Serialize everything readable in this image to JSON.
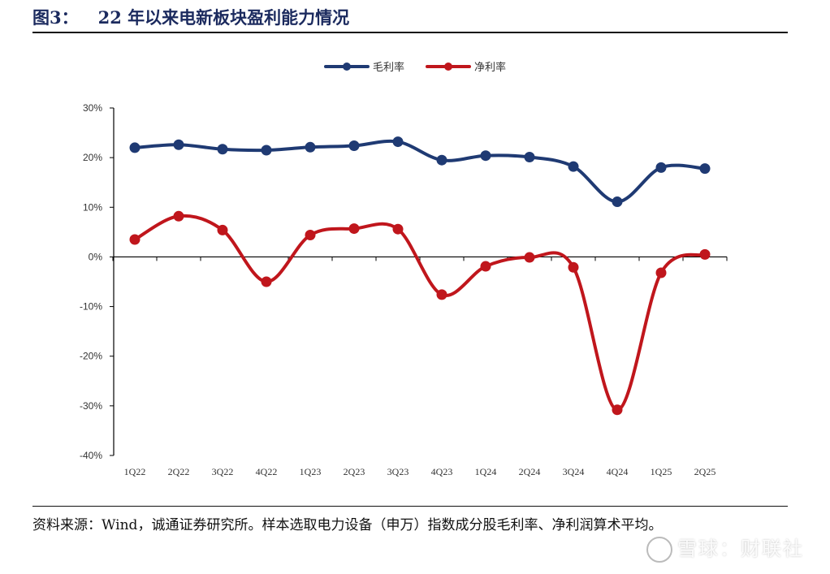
{
  "figure": {
    "number": "图3：",
    "title": "22 年以来电新板块盈利能力情况"
  },
  "legend": [
    {
      "label": "毛利率",
      "color": "#1f3a73"
    },
    {
      "label": "净利率",
      "color": "#c0161c"
    }
  ],
  "chart_data": {
    "type": "line",
    "categories": [
      "1Q22",
      "2Q22",
      "3Q22",
      "4Q22",
      "1Q23",
      "2Q23",
      "3Q23",
      "4Q23",
      "1Q24",
      "2Q24",
      "3Q24",
      "4Q24",
      "1Q25",
      "2Q25"
    ],
    "series": [
      {
        "name": "毛利率",
        "color": "#1f3a73",
        "values": [
          22.0,
          22.6,
          21.7,
          21.5,
          22.1,
          22.4,
          23.2,
          19.5,
          20.4,
          20.1,
          18.2,
          11.1,
          18.0,
          17.8
        ]
      },
      {
        "name": "净利率",
        "color": "#c0161c",
        "values": [
          3.5,
          8.2,
          5.4,
          -5.0,
          4.4,
          5.7,
          5.6,
          -7.6,
          -1.9,
          -0.1,
          -2.1,
          -30.8,
          -3.2,
          0.5
        ]
      }
    ],
    "ylim": [
      -40,
      30
    ],
    "yticks": [
      -40,
      -30,
      -20,
      -10,
      0,
      10,
      20,
      30
    ],
    "ytick_labels": [
      "-40%",
      "-30%",
      "-20%",
      "-10%",
      "0%",
      "10%",
      "20%",
      "30%"
    ],
    "legend_position": "top-center",
    "grid": false,
    "smooth": true
  },
  "source_note": "资料来源：Wind，诚通证券研究所。样本选取电力设备（申万）指数成分股毛利率、净利润算术平均。",
  "watermark": "雪球：财联社"
}
